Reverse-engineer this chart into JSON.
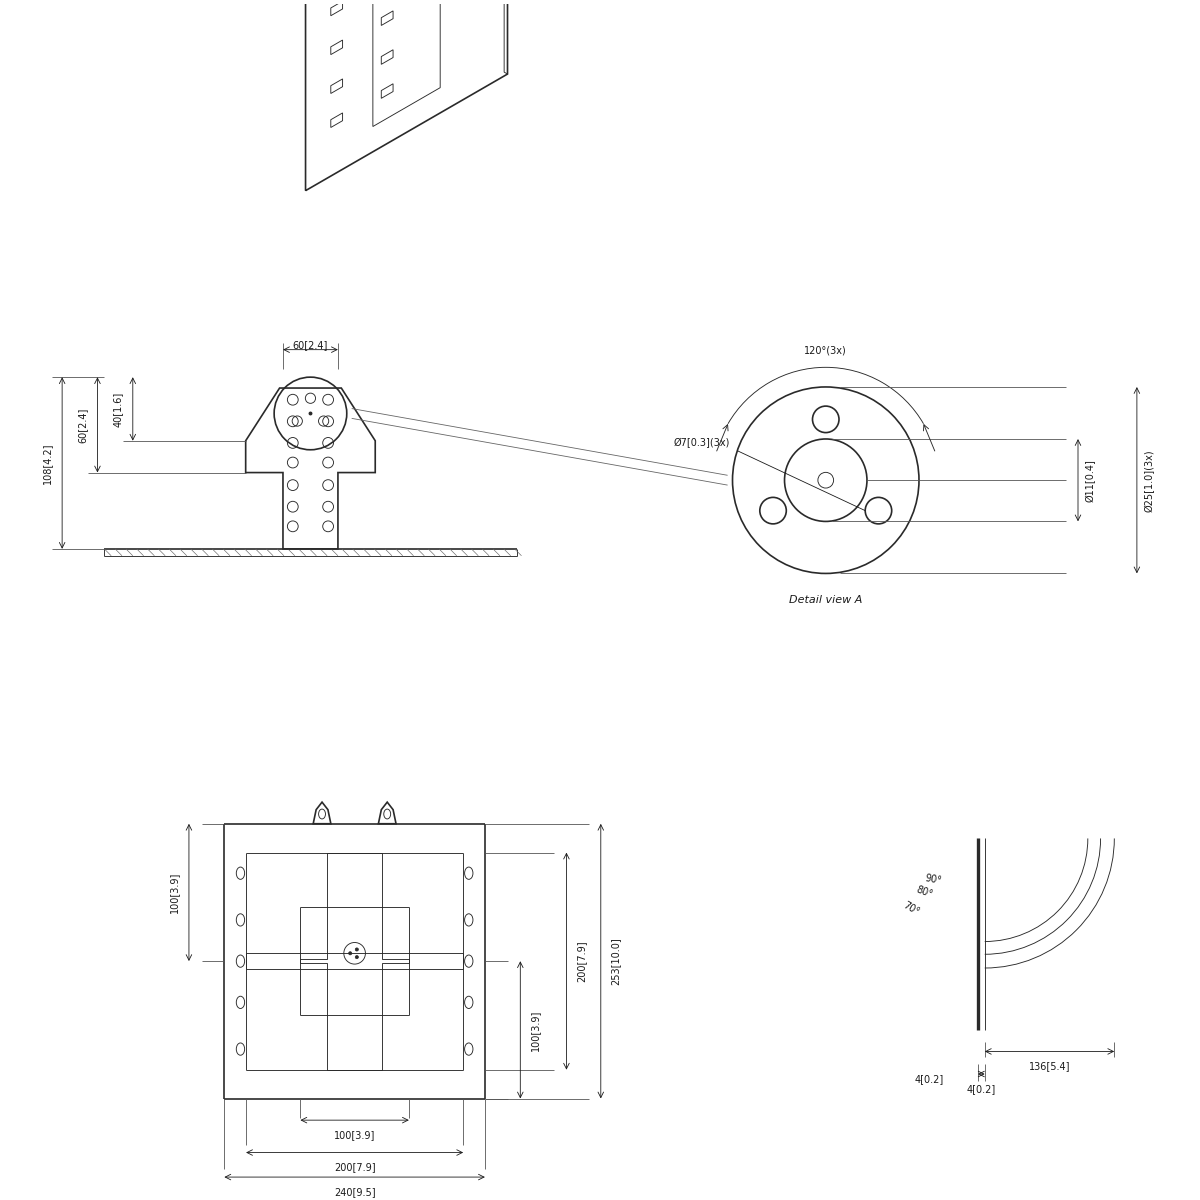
{
  "bg_color": "#ffffff",
  "line_color": "#2a2a2a",
  "dim_color": "#1a1a1a",
  "lw_main": 1.2,
  "lw_thin": 0.65,
  "lw_dim": 0.6,
  "fs_dim": 7.0,
  "fs_label": 8.0,
  "dims": {
    "front_height_108": "108[4.2]",
    "front_height_60": "60[2.4]",
    "front_height_40": "40[1.6]",
    "front_width_60": "60[2.4]",
    "detail_phi7": "Ø7[0.3](3x)",
    "detail_phi11": "Ø11[0.4]",
    "detail_phi25": "Ø25[1.0](3x)",
    "detail_angle": "120°(3x)",
    "bottom_100h": "100[3.9]",
    "bottom_100w": "100[3.9]",
    "bottom_200h": "200[7.9]",
    "bottom_253": "253[10.0]",
    "bottom_200w": "200[7.9]",
    "bottom_240": "240[9.5]",
    "side_136": "136[5.4]",
    "side_4": "4[0.2]",
    "side_90": "90°",
    "side_80": "80°",
    "side_70": "70°",
    "detail_view_label": "Detail view A"
  }
}
